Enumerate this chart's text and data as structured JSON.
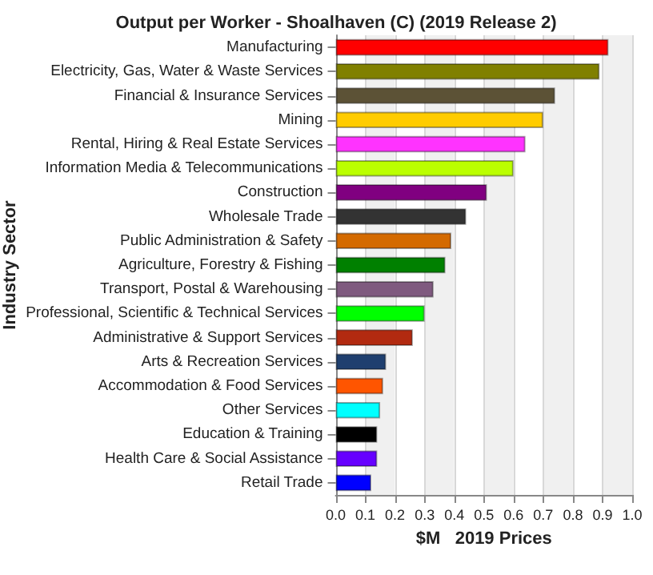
{
  "chart_data": {
    "type": "bar",
    "orientation": "horizontal",
    "title": "Output per Worker - Shoalhaven (C) (2019 Release 2)",
    "xlabel": "$M   2019 Prices",
    "ylabel": "Industry Sector",
    "categories": [
      "Manufacturing",
      "Electricity, Gas, Water & Waste Services",
      "Financial & Insurance Services",
      "Mining",
      "Rental, Hiring & Real Estate Services",
      "Information Media & Telecommunications",
      "Construction",
      "Wholesale Trade",
      "Public Administration & Safety",
      "Agriculture, Forestry & Fishing",
      "Transport, Postal & Warehousing",
      "Professional, Scientific & Technical Services",
      "Administrative & Support Services",
      "Arts & Recreation Services",
      "Accommodation & Food Services",
      "Other Services",
      "Education & Training",
      "Health Care & Social Assistance",
      "Retail Trade"
    ],
    "values": [
      0.92,
      0.89,
      0.74,
      0.7,
      0.64,
      0.6,
      0.51,
      0.44,
      0.39,
      0.37,
      0.33,
      0.3,
      0.26,
      0.17,
      0.16,
      0.15,
      0.14,
      0.14,
      0.12
    ],
    "colors": [
      "#ff0000",
      "#808000",
      "#5c5236",
      "#ffcc00",
      "#ff33ff",
      "#bbff00",
      "#800080",
      "#333333",
      "#d46a00",
      "#008000",
      "#7f5a7f",
      "#00ff00",
      "#b22a10",
      "#1f3f6f",
      "#ff5500",
      "#00ffff",
      "#000000",
      "#6600ff",
      "#0000ff"
    ],
    "xlim": [
      0,
      1
    ],
    "xticks": [
      {
        "value": 0,
        "label": "0.0"
      },
      {
        "value": 0.1,
        "label": "0.1"
      },
      {
        "value": 0.2,
        "label": "0.2"
      },
      {
        "value": 0.3,
        "label": "0.3"
      },
      {
        "value": 0.4,
        "label": "0.4"
      },
      {
        "value": 0.5,
        "label": "0.5"
      },
      {
        "value": 0.6,
        "label": "0.6"
      },
      {
        "value": 0.7,
        "label": "0.7"
      },
      {
        "value": 0.8,
        "label": "0.8"
      },
      {
        "value": 0.9,
        "label": "0.9"
      },
      {
        "value": 1,
        "label": "1.0"
      }
    ],
    "grid": "x"
  }
}
